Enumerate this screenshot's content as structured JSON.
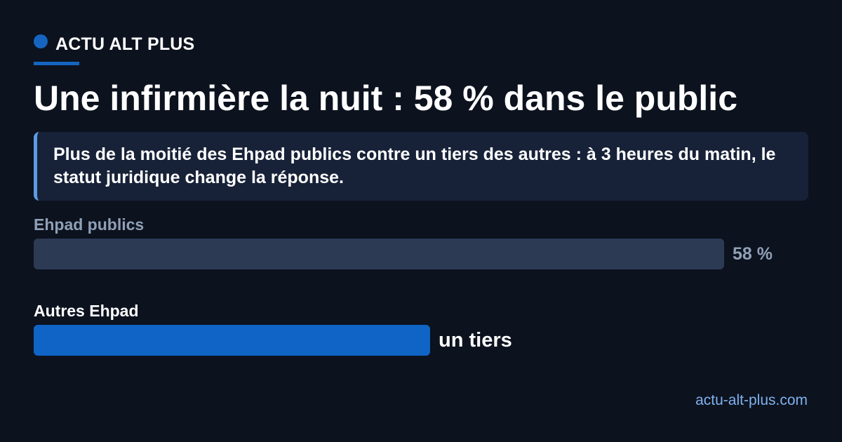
{
  "brand": {
    "name": "ACTU ALT PLUS",
    "accent_color": "#1565c0"
  },
  "headline": "Une infirmière la nuit : 58 % dans le public",
  "subtitle": "Plus de la moitié des Ehpad publics contre un tiers des autres : à 3 heures du matin, le statut juridique change la réponse.",
  "chart_data": {
    "type": "bar",
    "orientation": "horizontal",
    "unit": "%",
    "categories": [
      "Ehpad publics",
      "Autres Ehpad"
    ],
    "values": [
      58,
      33.3
    ],
    "value_labels": [
      "58 %",
      "un tiers"
    ],
    "colors": [
      "#2d3a54",
      "#0f64c6"
    ],
    "label_colors": [
      "#8fa0b6",
      "#ffffff"
    ],
    "xlim": [
      0,
      58
    ],
    "grid": false,
    "legend": "none"
  },
  "footer": {
    "site": "actu-alt-plus.com"
  }
}
